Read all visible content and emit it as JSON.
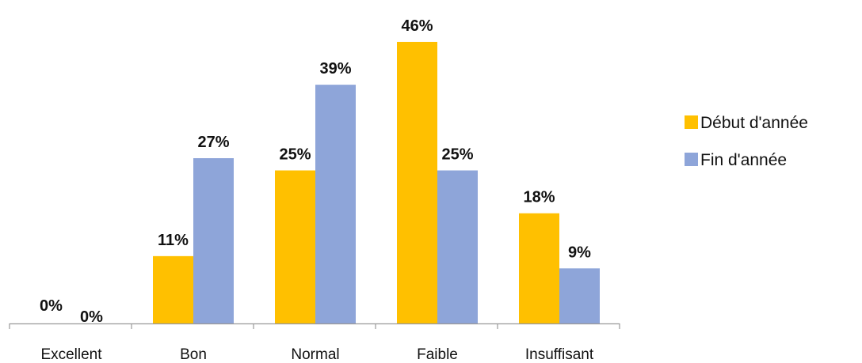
{
  "chart_data": {
    "type": "bar",
    "categories": [
      "Excellent",
      "Bon",
      "Normal",
      "Faible",
      "Insuffisant"
    ],
    "series": [
      {
        "name": "Début d'année",
        "values": [
          0,
          11,
          25,
          46,
          18
        ],
        "labels": [
          "0%",
          "11%",
          "25%",
          "46%",
          "18%"
        ],
        "color": "#FFC000"
      },
      {
        "name": "Fin d'année",
        "values": [
          0,
          27,
          39,
          25,
          9
        ],
        "labels": [
          "0%",
          "27%",
          "39%",
          "25%",
          "9%"
        ],
        "color": "#8EA5D9"
      }
    ],
    "title": "",
    "xlabel": "",
    "ylabel": "",
    "ylim": [
      0,
      46
    ],
    "value_unit": "%",
    "grid": false,
    "legend_position": "right",
    "axis_color": "#999999"
  }
}
